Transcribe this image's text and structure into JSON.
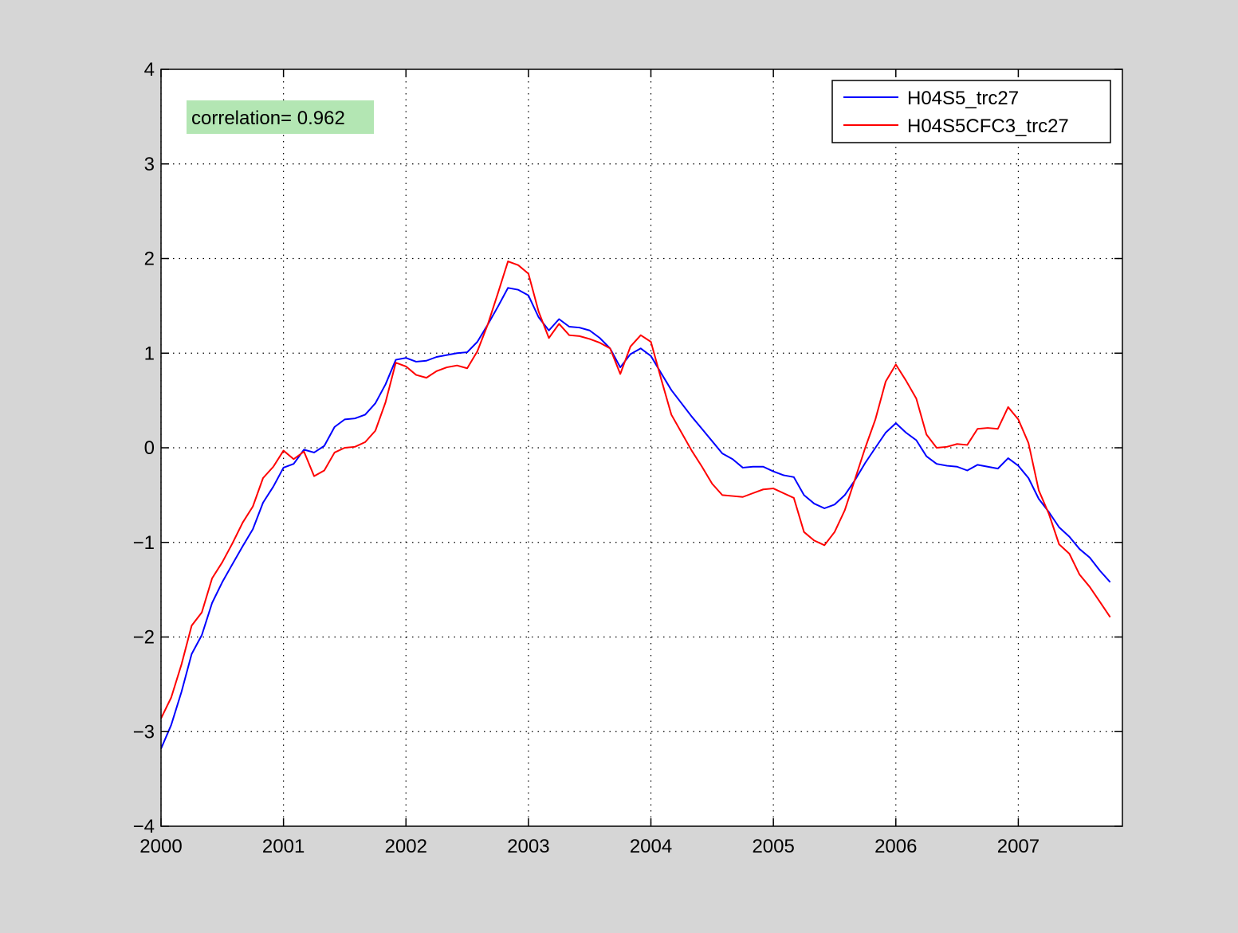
{
  "figure": {
    "background": "#d6d6d6",
    "axes_background": "#ffffff"
  },
  "chart_data": {
    "type": "line",
    "title": "",
    "xlabel": "",
    "ylabel": "",
    "xlim": [
      2000,
      2007.85
    ],
    "ylim": [
      -4,
      4
    ],
    "x_ticks": [
      2000,
      2001,
      2002,
      2003,
      2004,
      2005,
      2006,
      2007
    ],
    "x_tick_labels": [
      "2000",
      "2001",
      "2002",
      "2003",
      "2004",
      "2005",
      "2006",
      "2007"
    ],
    "y_ticks": [
      4,
      3,
      2,
      1,
      0,
      -1,
      -2,
      -3,
      -4
    ],
    "y_tick_labels": [
      "4",
      "3",
      "2",
      "1",
      "0",
      "−1",
      "−2",
      "−3",
      "−4"
    ],
    "grid": true,
    "grid_style": "dotted",
    "legend_position": "top-right",
    "annotation": {
      "text": "correlation= 0.962",
      "background": "#b3e6b3",
      "position": "top-left"
    },
    "x": [
      2000.0,
      2000.083,
      2000.167,
      2000.25,
      2000.333,
      2000.417,
      2000.5,
      2000.583,
      2000.667,
      2000.75,
      2000.833,
      2000.917,
      2001.0,
      2001.083,
      2001.167,
      2001.25,
      2001.333,
      2001.417,
      2001.5,
      2001.583,
      2001.667,
      2001.75,
      2001.833,
      2001.917,
      2002.0,
      2002.083,
      2002.167,
      2002.25,
      2002.333,
      2002.417,
      2002.5,
      2002.583,
      2002.667,
      2002.75,
      2002.833,
      2002.917,
      2003.0,
      2003.083,
      2003.167,
      2003.25,
      2003.333,
      2003.417,
      2003.5,
      2003.583,
      2003.667,
      2003.75,
      2003.833,
      2003.917,
      2004.0,
      2004.083,
      2004.167,
      2004.25,
      2004.333,
      2004.417,
      2004.5,
      2004.583,
      2004.667,
      2004.75,
      2004.833,
      2004.917,
      2005.0,
      2005.083,
      2005.167,
      2005.25,
      2005.333,
      2005.417,
      2005.5,
      2005.583,
      2005.667,
      2005.75,
      2005.833,
      2005.917,
      2006.0,
      2006.083,
      2006.167,
      2006.25,
      2006.333,
      2006.417,
      2006.5,
      2006.583,
      2006.667,
      2006.75,
      2006.833,
      2006.917,
      2007.0,
      2007.083,
      2007.167,
      2007.25,
      2007.333,
      2007.417,
      2007.5,
      2007.583,
      2007.667,
      2007.75
    ],
    "series": [
      {
        "name": "H04S5_trc27",
        "color": "#0000ff",
        "values": [
          -3.18,
          -2.93,
          -2.58,
          -2.18,
          -1.98,
          -1.64,
          -1.42,
          -1.23,
          -1.04,
          -0.86,
          -0.58,
          -0.41,
          -0.21,
          -0.17,
          -0.02,
          -0.05,
          0.02,
          0.22,
          0.3,
          0.31,
          0.35,
          0.47,
          0.67,
          0.93,
          0.95,
          0.91,
          0.92,
          0.96,
          0.98,
          1.0,
          1.01,
          1.12,
          1.3,
          1.49,
          1.69,
          1.67,
          1.61,
          1.38,
          1.24,
          1.36,
          1.28,
          1.27,
          1.24,
          1.16,
          1.05,
          0.85,
          0.99,
          1.05,
          0.97,
          0.79,
          0.61,
          0.47,
          0.33,
          0.2,
          0.07,
          -0.06,
          -0.12,
          -0.21,
          -0.2,
          -0.2,
          -0.25,
          -0.29,
          -0.31,
          -0.5,
          -0.59,
          -0.64,
          -0.6,
          -0.5,
          -0.34,
          -0.16,
          0.0,
          0.16,
          0.26,
          0.16,
          0.08,
          -0.09,
          -0.17,
          -0.19,
          -0.2,
          -0.24,
          -0.18,
          -0.2,
          -0.22,
          -0.11,
          -0.19,
          -0.32,
          -0.54,
          -0.68,
          -0.84,
          -0.94,
          -1.07,
          -1.16,
          -1.3,
          -1.42
        ]
      },
      {
        "name": "H04S5CFC3_trc27",
        "color": "#ff0000",
        "values": [
          -2.86,
          -2.64,
          -2.29,
          -1.88,
          -1.74,
          -1.38,
          -1.21,
          -1.01,
          -0.79,
          -0.62,
          -0.32,
          -0.2,
          -0.03,
          -0.12,
          -0.04,
          -0.3,
          -0.24,
          -0.05,
          0.0,
          0.01,
          0.06,
          0.18,
          0.48,
          0.9,
          0.86,
          0.77,
          0.74,
          0.81,
          0.85,
          0.87,
          0.84,
          1.02,
          1.3,
          1.63,
          1.97,
          1.93,
          1.84,
          1.44,
          1.16,
          1.31,
          1.19,
          1.18,
          1.15,
          1.11,
          1.05,
          0.78,
          1.07,
          1.19,
          1.12,
          0.73,
          0.35,
          0.16,
          -0.03,
          -0.2,
          -0.38,
          -0.5,
          -0.51,
          -0.52,
          -0.48,
          -0.44,
          -0.43,
          -0.48,
          -0.53,
          -0.89,
          -0.98,
          -1.03,
          -0.89,
          -0.66,
          -0.33,
          0.0,
          0.3,
          0.7,
          0.88,
          0.71,
          0.52,
          0.14,
          0.0,
          0.01,
          0.04,
          0.03,
          0.2,
          0.21,
          0.2,
          0.43,
          0.3,
          0.05,
          -0.45,
          -0.7,
          -1.02,
          -1.12,
          -1.34,
          -1.47,
          -1.63,
          -1.79
        ]
      }
    ]
  }
}
